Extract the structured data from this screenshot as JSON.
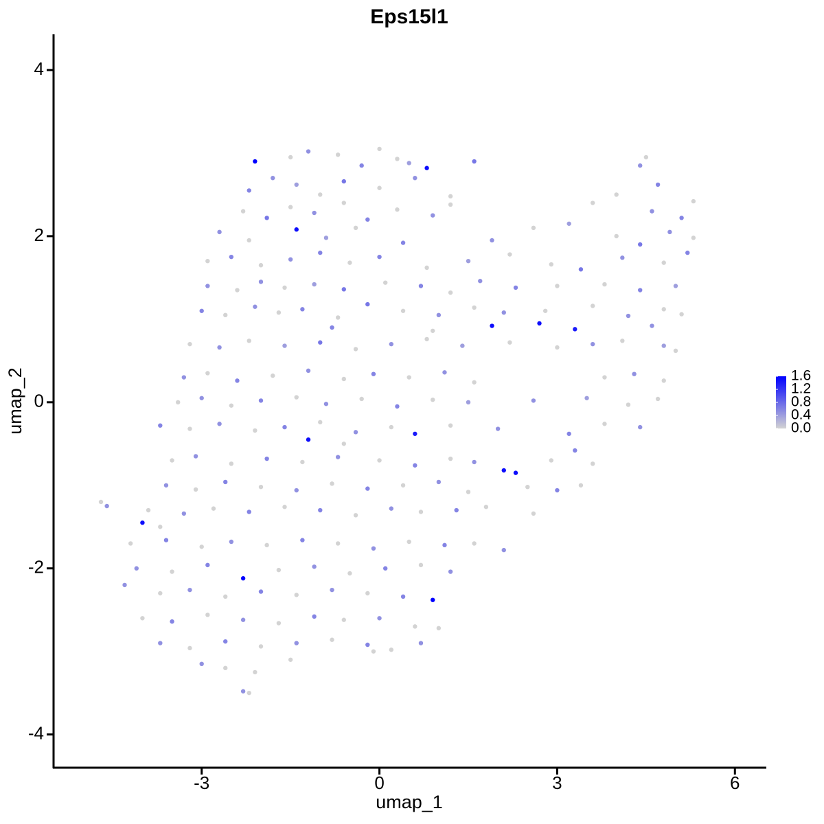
{
  "chart_data": {
    "type": "scatter",
    "title": "Eps15l1",
    "x_label": "umap_1",
    "y_label": "umap_2",
    "xlim": [
      -5.5,
      6.53
    ],
    "ylim": [
      -4.4,
      4.43
    ],
    "xticks": [
      -3,
      0,
      3,
      6
    ],
    "yticks": [
      -4,
      -2,
      0,
      2,
      4
    ],
    "colorbar": {
      "lim": [
        0,
        1.6
      ],
      "colors": [
        "#d3d3d3",
        "#0000ff"
      ],
      "ticks": [
        {
          "value": 0,
          "label": "0.0"
        },
        0.4,
        0.8,
        1.2,
        1.6
      ]
    },
    "x": [
      -2.1,
      -1.5,
      -1.2,
      -0.7,
      -0.3,
      0,
      0.3,
      0.5,
      0.8,
      1.6,
      -2.2,
      -1.8,
      -1.4,
      -1.0,
      -0.6,
      0,
      0.6,
      1.2,
      4.4,
      4.7,
      4.5,
      -2.3,
      -1.9,
      -1.5,
      -1.1,
      -0.6,
      -0.2,
      0.3,
      0.9,
      1.2,
      3.6,
      4.0,
      4.6,
      5.1,
      5.3,
      -2.7,
      -2.2,
      -1.4,
      -0.9,
      -0.4,
      0.4,
      1.9,
      2.6,
      3.2,
      4.0,
      4.4,
      4.9,
      5.3,
      -2.9,
      -2.5,
      -2.0,
      -1.5,
      -1.0,
      -0.5,
      0,
      0.8,
      1.5,
      2.2,
      2.9,
      3.4,
      4.1,
      4.8,
      5.2,
      -2.9,
      -2.4,
      -2.0,
      -1.6,
      -1.1,
      -0.6,
      0.1,
      0.7,
      1.2,
      1.7,
      2.3,
      3.0,
      3.8,
      4.4,
      5.0,
      -3.0,
      -2.6,
      -2.1,
      -1.7,
      -1.3,
      -0.7,
      -0.2,
      0.4,
      1.0,
      1.6,
      2.1,
      2.8,
      3.6,
      4.2,
      4.8,
      5.1,
      1.9,
      2.7,
      3.3,
      -0.8,
      0.9,
      4.6,
      -3.2,
      -2.7,
      -2.2,
      -1.6,
      -1.0,
      -0.4,
      0.2,
      0.8,
      1.4,
      2.2,
      3.0,
      3.6,
      4.1,
      4.8,
      5.0,
      -3.3,
      -2.9,
      -2.4,
      -1.8,
      -1.2,
      -0.6,
      -0.1,
      0.5,
      1.1,
      1.6,
      3.8,
      4.3,
      4.8,
      -3.4,
      -3.0,
      -2.5,
      -2.0,
      -1.4,
      -0.9,
      -0.3,
      0.3,
      0.9,
      1.5,
      2.6,
      3.5,
      4.2,
      4.7,
      -3.7,
      -3.2,
      -2.7,
      -2.1,
      -1.6,
      -1.0,
      -0.4,
      0.2,
      0.6,
      1.2,
      2.0,
      3.2,
      3.8,
      4.4,
      -1.2,
      -0.6,
      -3.5,
      -3.1,
      -2.5,
      -1.9,
      -1.3,
      -0.7,
      0,
      0.6,
      1.2,
      1.6,
      2.1,
      2.3,
      2.9,
      3.3,
      3.6,
      -3.6,
      -3.1,
      -2.6,
      -2.0,
      -1.4,
      -0.8,
      -0.2,
      0.4,
      1.0,
      1.5,
      2.5,
      3.0,
      3.4,
      -4.7,
      -4.6,
      -3.9,
      -3.3,
      -2.8,
      -2.2,
      -1.6,
      -1.0,
      -0.4,
      0.2,
      0.7,
      1.3,
      1.8,
      2.6,
      -4.0,
      -3.7,
      -4.2,
      -3.6,
      -3.0,
      -2.5,
      -1.9,
      -1.3,
      -0.7,
      -0.1,
      0.5,
      1.1,
      1.6,
      2.1,
      -4.1,
      -3.5,
      -2.9,
      -2.3,
      -1.7,
      -1.1,
      -0.5,
      0.1,
      0.7,
      1.2,
      -4.3,
      -3.7,
      -3.2,
      -2.6,
      -2.0,
      -1.4,
      -0.8,
      -0.2,
      0.4,
      0.9,
      -4.0,
      -3.5,
      -2.9,
      -2.3,
      -1.7,
      -1.1,
      -0.6,
      0,
      0.6,
      1.0,
      -3.7,
      -3.2,
      -2.6,
      -2.0,
      -1.4,
      -0.8,
      -0.2,
      0.2,
      0.7,
      -3.0,
      -2.6,
      -2.1,
      -1.5,
      -0.1,
      -2.3,
      -2.2
    ],
    "y": [
      2.9,
      2.95,
      3.02,
      2.98,
      2.85,
      3.05,
      2.93,
      2.88,
      2.82,
      2.9,
      2.55,
      2.7,
      2.62,
      2.5,
      2.66,
      2.58,
      2.7,
      2.48,
      2.85,
      2.62,
      2.95,
      2.3,
      2.22,
      2.35,
      2.28,
      2.4,
      2.2,
      2.32,
      2.25,
      2.38,
      2.4,
      2.5,
      2.3,
      2.22,
      2.42,
      2.05,
      1.95,
      2.08,
      1.98,
      2.1,
      1.92,
      1.95,
      2.1,
      2.15,
      2.0,
      1.9,
      2.05,
      1.98,
      1.7,
      1.75,
      1.65,
      1.72,
      1.8,
      1.68,
      1.75,
      1.62,
      1.7,
      1.78,
      1.66,
      1.6,
      1.74,
      1.68,
      1.8,
      1.4,
      1.35,
      1.45,
      1.38,
      1.42,
      1.36,
      1.44,
      1.4,
      1.32,
      1.46,
      1.38,
      1.4,
      1.42,
      1.35,
      1.4,
      1.1,
      1.05,
      1.15,
      1.08,
      1.12,
      1.02,
      1.18,
      1.1,
      1.05,
      1.14,
      1.08,
      1.1,
      1.16,
      1.04,
      1.12,
      1.06,
      0.92,
      0.95,
      0.88,
      0.9,
      0.86,
      0.92,
      0.7,
      0.66,
      0.74,
      0.68,
      0.72,
      0.64,
      0.7,
      0.76,
      0.68,
      0.72,
      0.66,
      0.7,
      0.74,
      0.68,
      0.62,
      0.3,
      0.35,
      0.26,
      0.32,
      0.38,
      0.28,
      0.34,
      0.3,
      0.36,
      0.24,
      0.3,
      0.34,
      0.26,
      0,
      0.05,
      -0.04,
      0.02,
      0.06,
      -0.02,
      0.04,
      -0.05,
      0.03,
      0,
      0.02,
      0.05,
      -0.03,
      0.04,
      -0.28,
      -0.32,
      -0.26,
      -0.34,
      -0.3,
      -0.24,
      -0.36,
      -0.3,
      -0.38,
      -0.28,
      -0.32,
      -0.38,
      -0.26,
      -0.3,
      -0.45,
      -0.5,
      -0.7,
      -0.65,
      -0.74,
      -0.68,
      -0.72,
      -0.66,
      -0.7,
      -0.76,
      -0.68,
      -0.72,
      -0.82,
      -0.85,
      -0.7,
      -0.58,
      -0.74,
      -1.0,
      -1.05,
      -0.96,
      -1.02,
      -1.06,
      -0.98,
      -1.04,
      -1.0,
      -0.96,
      -1.08,
      -1.02,
      -1.06,
      -1.0,
      -1.2,
      -1.25,
      -1.3,
      -1.34,
      -1.28,
      -1.32,
      -1.26,
      -1.3,
      -1.36,
      -1.28,
      -1.32,
      -1.3,
      -1.26,
      -1.34,
      -1.45,
      -1.5,
      -1.7,
      -1.66,
      -1.74,
      -1.68,
      -1.72,
      -1.66,
      -1.7,
      -1.76,
      -1.68,
      -1.72,
      -1.7,
      -1.78,
      -2.0,
      -2.04,
      -1.96,
      -2.12,
      -2.02,
      -1.98,
      -2.06,
      -2.0,
      -1.96,
      -2.04,
      -2.2,
      -2.3,
      -2.26,
      -2.34,
      -2.28,
      -2.32,
      -2.26,
      -2.3,
      -2.34,
      -2.38,
      -2.6,
      -2.64,
      -2.56,
      -2.62,
      -2.66,
      -2.58,
      -2.62,
      -2.6,
      -2.7,
      -2.72,
      -2.9,
      -2.96,
      -2.88,
      -2.94,
      -2.9,
      -2.86,
      -2.92,
      -2.98,
      -2.9,
      -3.15,
      -3.2,
      -3.25,
      -3.1,
      -3.0,
      -3.48,
      -3.5
    ],
    "expression": [
      1.6,
      0,
      0.5,
      0,
      0.6,
      0,
      0,
      0.4,
      1.5,
      0.7,
      0.6,
      0.5,
      0.4,
      0,
      0.7,
      0,
      0.5,
      0,
      0.5,
      0.6,
      0,
      0,
      0.7,
      0,
      0.5,
      0,
      0.6,
      0,
      0.5,
      0,
      0,
      0,
      0.5,
      0.6,
      0,
      0.5,
      0,
      1.5,
      0.4,
      0,
      0.6,
      0.5,
      0,
      0.4,
      0,
      0.7,
      0.5,
      0,
      0,
      0.6,
      0,
      0.5,
      0.6,
      0,
      0.6,
      0,
      0.4,
      0,
      0,
      0.7,
      0.5,
      0,
      0.6,
      0.5,
      0,
      0.5,
      0,
      0.4,
      0.7,
      0,
      0.6,
      0,
      0.5,
      0.6,
      0,
      0,
      0.6,
      0.4,
      0.6,
      0,
      0.5,
      0,
      0.6,
      0,
      0.7,
      0,
      0.5,
      0,
      0.5,
      0,
      0,
      0.5,
      0,
      0,
      1.5,
      1.5,
      1.4,
      0.6,
      0,
      0.5,
      0,
      0.5,
      0,
      0.4,
      0.7,
      0,
      0.5,
      0,
      0.4,
      0,
      0,
      0.5,
      0,
      0.4,
      0,
      0.5,
      0,
      0.6,
      0,
      0.5,
      0,
      0.6,
      0,
      0.5,
      0,
      0,
      0.5,
      0,
      0,
      0.5,
      0,
      0.6,
      0,
      0.5,
      0,
      0.6,
      0,
      0.4,
      0.5,
      0.4,
      0,
      0,
      0.6,
      0,
      0.5,
      0,
      0.6,
      0,
      0.5,
      0,
      1.4,
      0,
      0.5,
      0.6,
      0,
      0.5,
      1.5,
      0,
      0,
      0.5,
      0,
      0.6,
      0,
      0.5,
      0,
      0.6,
      0,
      0.5,
      1.5,
      1.5,
      0,
      0.6,
      0,
      0.5,
      0,
      0.6,
      0,
      0.5,
      0,
      0.6,
      0,
      0.5,
      0,
      0,
      0.6,
      0,
      0,
      0.5,
      0,
      0.5,
      0,
      0.6,
      0,
      0.6,
      0,
      0.5,
      0,
      0.6,
      0,
      0,
      1.5,
      0,
      0,
      0.6,
      0,
      0.5,
      0,
      0.6,
      0,
      0.5,
      0,
      0.6,
      0,
      0.5,
      0.5,
      0,
      0.6,
      1.6,
      0,
      0.5,
      0,
      0.6,
      0,
      0.5,
      0.5,
      0,
      0.5,
      0,
      0.6,
      0,
      0.5,
      0,
      0.6,
      1.6,
      0,
      0.6,
      0,
      0.5,
      0,
      0.6,
      0,
      0.5,
      0,
      0,
      0.5,
      0,
      0.6,
      0,
      0.5,
      0,
      0.6,
      0,
      0.5,
      0.5,
      0,
      0,
      0,
      0,
      0.5,
      0
    ]
  }
}
